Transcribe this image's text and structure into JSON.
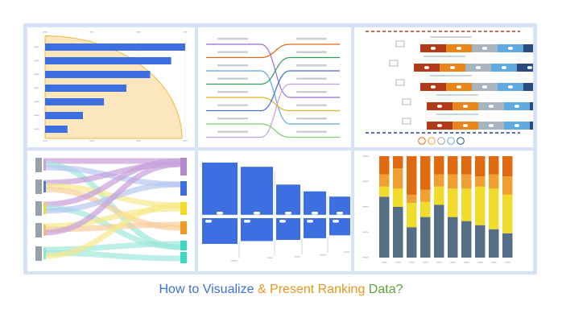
{
  "caption": {
    "part1": "How to Visualize ",
    "part2": "& Present Ranking ",
    "part3": "Data?"
  },
  "colors": {
    "blue": "#3d6fe0",
    "orange": "#f09a24",
    "dark_orange": "#e06a10",
    "yellow": "#f0dc2a",
    "slate": "#506f88",
    "frame": "#d6e2f5",
    "red_dash": "#b03a1a",
    "navy_dash": "#2a3f8f"
  },
  "chart_data": [
    {
      "type": "bar",
      "orientation": "horizontal",
      "values": [
        100,
        90,
        75,
        58,
        42,
        27,
        16
      ],
      "overlay": "radial-arc"
    },
    {
      "type": "bump",
      "rows": 8,
      "left_rank_to_right_rank": [
        5,
        1,
        7,
        2,
        6,
        3,
        8,
        4
      ],
      "series_colors": [
        "#9b6bd0",
        "#e06a10",
        "#5fa8e0",
        "#2e9a52",
        "#e8b020",
        "#3d6fe0",
        "#7fd06a",
        "#c0a0e0"
      ]
    },
    {
      "type": "ranked-stacked-bar",
      "rows": [
        {
          "offset": 1,
          "segments": [
            2,
            2,
            2,
            2,
            2
          ]
        },
        {
          "offset": 0,
          "segments": [
            2,
            2,
            2,
            2,
            2
          ]
        },
        {
          "offset": 1,
          "segments": [
            2,
            2,
            2,
            2,
            2
          ]
        },
        {
          "offset": 2,
          "segments": [
            2,
            2,
            2,
            2,
            2
          ]
        },
        {
          "offset": 2,
          "segments": [
            2,
            2,
            2,
            2,
            2
          ]
        }
      ],
      "segment_colors": [
        "#b03a1a",
        "#e8861c",
        "#a8b4c0",
        "#5fa8e0",
        "#2a4a7f"
      ],
      "legend_icons": [
        "very-unhappy-icon",
        "unhappy-icon",
        "neutral-icon",
        "happy-icon",
        "very-happy-icon"
      ]
    },
    {
      "type": "sankey",
      "left_nodes": 5,
      "right_nodes": 6,
      "right_node_colors": [
        "#b48acd",
        "#3d6fe0",
        "#f0dc2a",
        "#f09a24",
        "#3dd6c0",
        "#3dd6c0"
      ]
    },
    {
      "type": "bar",
      "orientation": "mirrored",
      "top_values": [
        100,
        92,
        58,
        45,
        35,
        33
      ],
      "bottom_values": [
        45,
        40,
        38,
        35,
        30,
        28
      ]
    },
    {
      "type": "bar",
      "stacked": true,
      "series": [
        {
          "values": [
            60,
            50,
            30,
            40,
            52,
            40,
            36,
            32,
            28,
            24
          ]
        },
        {
          "values": [
            10,
            18,
            24,
            15,
            18,
            28,
            32,
            38,
            40,
            38
          ]
        },
        {
          "values": [
            12,
            20,
            8,
            12,
            12,
            14,
            14,
            10,
            14,
            18
          ]
        },
        {
          "values": [
            18,
            12,
            38,
            33,
            18,
            18,
            18,
            20,
            18,
            20
          ]
        }
      ],
      "series_colors": [
        "#556e85",
        "#f0dc2a",
        "#f0a030",
        "#e06a10"
      ]
    }
  ]
}
